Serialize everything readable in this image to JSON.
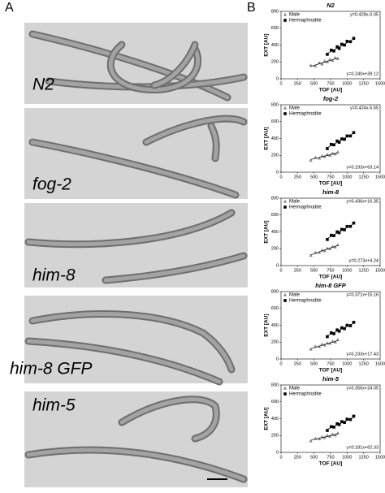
{
  "panels": {
    "a": {
      "label": "A",
      "images": [
        {
          "label": "N2"
        },
        {
          "label": "fog-2"
        },
        {
          "label": "him-8"
        },
        {
          "label": "him-8 GFP"
        },
        {
          "label": "him-5"
        }
      ]
    },
    "b": {
      "label": "B"
    }
  },
  "chart_data": [
    {
      "type": "scatter",
      "title": "N2",
      "x_label": "TOF [AU]",
      "y_label": "EXT [AU]",
      "xlim": [
        0,
        1500
      ],
      "ylim": [
        0,
        800
      ],
      "xticks": [
        0,
        250,
        500,
        750,
        1000,
        1250,
        1500
      ],
      "yticks": [
        0,
        200,
        400,
        600,
        800
      ],
      "series": [
        {
          "name": "Male",
          "color": "#8c8c8c",
          "marker": "triangle",
          "x": [
            450,
            520,
            580,
            620,
            660,
            700,
            740,
            780,
            820,
            860
          ],
          "values": [
            160,
            150,
            190,
            175,
            210,
            200,
            230,
            215,
            250,
            240
          ],
          "fit": {
            "label": "y=0.240x+39.12",
            "slope": 0.24,
            "intercept": 39.12
          }
        },
        {
          "name": "Hermaphrodite",
          "color": "#000000",
          "marker": "square",
          "x": [
            700,
            760,
            800,
            850,
            880,
            920,
            960,
            1000,
            1050,
            1100
          ],
          "values": [
            290,
            340,
            330,
            380,
            360,
            410,
            400,
            445,
            440,
            480
          ],
          "fit": {
            "label": "y=0.428x-0.05",
            "slope": 0.428,
            "intercept": -0.05
          }
        }
      ]
    },
    {
      "type": "scatter",
      "title": "fog-2",
      "x_label": "TOF [AU]",
      "y_label": "EXT [AU]",
      "xlim": [
        0,
        1500
      ],
      "ylim": [
        0,
        800
      ],
      "xticks": [
        0,
        250,
        500,
        750,
        1000,
        1250,
        1500
      ],
      "yticks": [
        0,
        200,
        400,
        600,
        800
      ],
      "series": [
        {
          "name": "Male",
          "color": "#8c8c8c",
          "marker": "triangle",
          "x": [
            450,
            520,
            580,
            620,
            660,
            700,
            740,
            780,
            820,
            860
          ],
          "values": [
            140,
            175,
            165,
            195,
            185,
            210,
            200,
            225,
            215,
            240
          ],
          "fit": {
            "label": "y=0.193x+63.14",
            "slope": 0.193,
            "intercept": 63.14
          }
        },
        {
          "name": "Hermaphrodite",
          "color": "#000000",
          "marker": "square",
          "x": [
            700,
            760,
            800,
            850,
            880,
            920,
            960,
            1000,
            1050,
            1100
          ],
          "values": [
            280,
            330,
            325,
            370,
            355,
            395,
            390,
            430,
            430,
            470
          ],
          "fit": {
            "label": "y=0.424x-5.65",
            "slope": 0.424,
            "intercept": -5.65
          }
        }
      ]
    },
    {
      "type": "scatter",
      "title": "him-8",
      "x_label": "TOF [AU]",
      "y_label": "EXT [AU]",
      "xlim": [
        0,
        1500
      ],
      "ylim": [
        0,
        800
      ],
      "xticks": [
        0,
        250,
        500,
        750,
        1000,
        1250,
        1500
      ],
      "yticks": [
        0,
        200,
        400,
        600,
        800
      ],
      "series": [
        {
          "name": "Male",
          "color": "#8c8c8c",
          "marker": "triangle",
          "x": [
            450,
            520,
            580,
            620,
            660,
            700,
            740,
            780,
            820,
            860
          ],
          "values": [
            120,
            155,
            155,
            185,
            175,
            205,
            200,
            225,
            220,
            245
          ],
          "fit": {
            "label": "y=0.273x+4.24",
            "slope": 0.273,
            "intercept": 4.24
          }
        },
        {
          "name": "Hermaphrodite",
          "color": "#000000",
          "marker": "square",
          "x": [
            700,
            760,
            800,
            850,
            880,
            920,
            960,
            1000,
            1050,
            1100
          ],
          "values": [
            310,
            360,
            355,
            400,
            390,
            430,
            425,
            465,
            465,
            505
          ],
          "fit": {
            "label": "y=0.436x+16.35",
            "slope": 0.436,
            "intercept": 16.35
          }
        }
      ]
    },
    {
      "type": "scatter",
      "title": "him-8 GFP",
      "x_label": "TOF [AU]",
      "y_label": "EXT [AU]",
      "xlim": [
        0,
        1500
      ],
      "ylim": [
        0,
        800
      ],
      "xticks": [
        0,
        250,
        500,
        750,
        1000,
        1250,
        1500
      ],
      "yticks": [
        0,
        200,
        400,
        600,
        800
      ],
      "series": [
        {
          "name": "Male",
          "color": "#8c8c8c",
          "marker": "triangle",
          "x": [
            450,
            520,
            580,
            620,
            660,
            700,
            740,
            780,
            820,
            860
          ],
          "values": [
            115,
            150,
            145,
            175,
            165,
            190,
            185,
            210,
            200,
            230
          ],
          "fit": {
            "label": "y=0.233x+17.43",
            "slope": 0.233,
            "intercept": 17.43
          }
        },
        {
          "name": "Hermaphrodite",
          "color": "#000000",
          "marker": "square",
          "x": [
            700,
            760,
            800,
            850,
            880,
            920,
            960,
            1000,
            1050,
            1100
          ],
          "values": [
            265,
            310,
            300,
            345,
            330,
            370,
            360,
            400,
            395,
            435
          ],
          "fit": {
            "label": "y=0.371x+15.16",
            "slope": 0.371,
            "intercept": 15.16
          }
        }
      ]
    },
    {
      "type": "scatter",
      "title": "him-5",
      "x_label": "TOF [AU]",
      "y_label": "EXT [AU]",
      "xlim": [
        0,
        1500
      ],
      "ylim": [
        0,
        800
      ],
      "xticks": [
        0,
        250,
        500,
        750,
        1000,
        1250,
        1500
      ],
      "yticks": [
        0,
        200,
        400,
        600,
        800
      ],
      "series": [
        {
          "name": "Male",
          "color": "#8c8c8c",
          "marker": "triangle",
          "x": [
            450,
            520,
            580,
            620,
            660,
            700,
            740,
            780,
            820,
            860
          ],
          "values": [
            135,
            165,
            160,
            185,
            175,
            200,
            190,
            215,
            205,
            230
          ],
          "fit": {
            "label": "y=0.181x+62.33",
            "slope": 0.181,
            "intercept": 62.33
          }
        },
        {
          "name": "Hermaphrodite",
          "color": "#000000",
          "marker": "square",
          "x": [
            700,
            760,
            800,
            850,
            880,
            920,
            960,
            1000,
            1050,
            1100
          ],
          "values": [
            260,
            305,
            300,
            340,
            330,
            365,
            355,
            395,
            390,
            430
          ],
          "fit": {
            "label": "y=0.356x+24.05",
            "slope": 0.356,
            "intercept": 24.05
          }
        }
      ]
    }
  ]
}
